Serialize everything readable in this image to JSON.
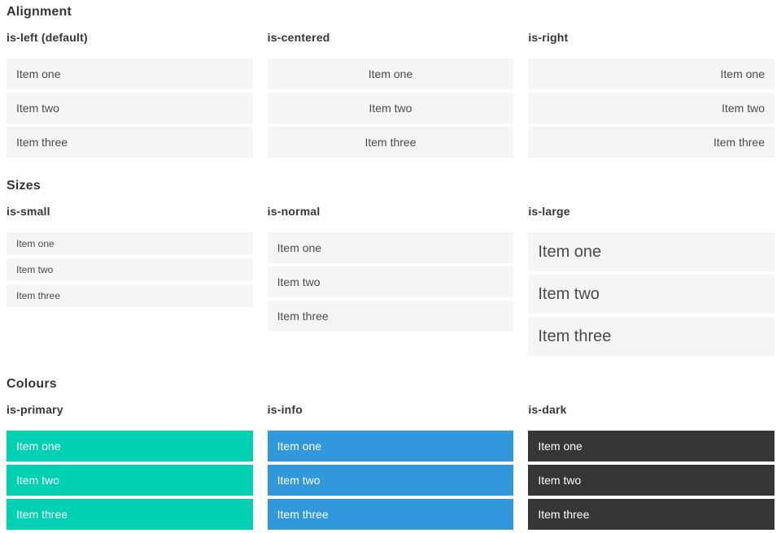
{
  "colors": {
    "item_bg_default": "#f5f5f5",
    "item_text_default": "#4a4a4a",
    "heading_text": "#363636",
    "item_text_on_color": "#ffffff",
    "primary": "#00d1b2",
    "info": "#3298dc",
    "dark": "#363636"
  },
  "sections": [
    {
      "title": "Alignment",
      "columns": [
        {
          "heading": "is-left (default)",
          "modifier": "is-left",
          "items": [
            "Item one",
            "Item two",
            "Item three"
          ]
        },
        {
          "heading": "is-centered",
          "modifier": "is-centered",
          "items": [
            "Item one",
            "Item two",
            "Item three"
          ]
        },
        {
          "heading": "is-right",
          "modifier": "is-right",
          "items": [
            "Item one",
            "Item two",
            "Item three"
          ]
        }
      ]
    },
    {
      "title": "Sizes",
      "columns": [
        {
          "heading": "is-small",
          "modifier": "is-small",
          "items": [
            "Item one",
            "Item two",
            "Item three"
          ]
        },
        {
          "heading": "is-normal",
          "modifier": "is-normal",
          "items": [
            "Item one",
            "Item two",
            "Item three"
          ]
        },
        {
          "heading": "is-large",
          "modifier": "is-large",
          "items": [
            "Item one",
            "Item two",
            "Item three"
          ]
        }
      ]
    },
    {
      "title": "Colours",
      "columns": [
        {
          "heading": "is-primary",
          "modifier": "is-primary",
          "items": [
            "Item one",
            "Item two",
            "Item three"
          ]
        },
        {
          "heading": "is-info",
          "modifier": "is-info",
          "items": [
            "Item one",
            "Item two",
            "Item three"
          ]
        },
        {
          "heading": "is-dark",
          "modifier": "is-dark",
          "items": [
            "Item one",
            "Item two",
            "Item three"
          ]
        }
      ]
    }
  ]
}
